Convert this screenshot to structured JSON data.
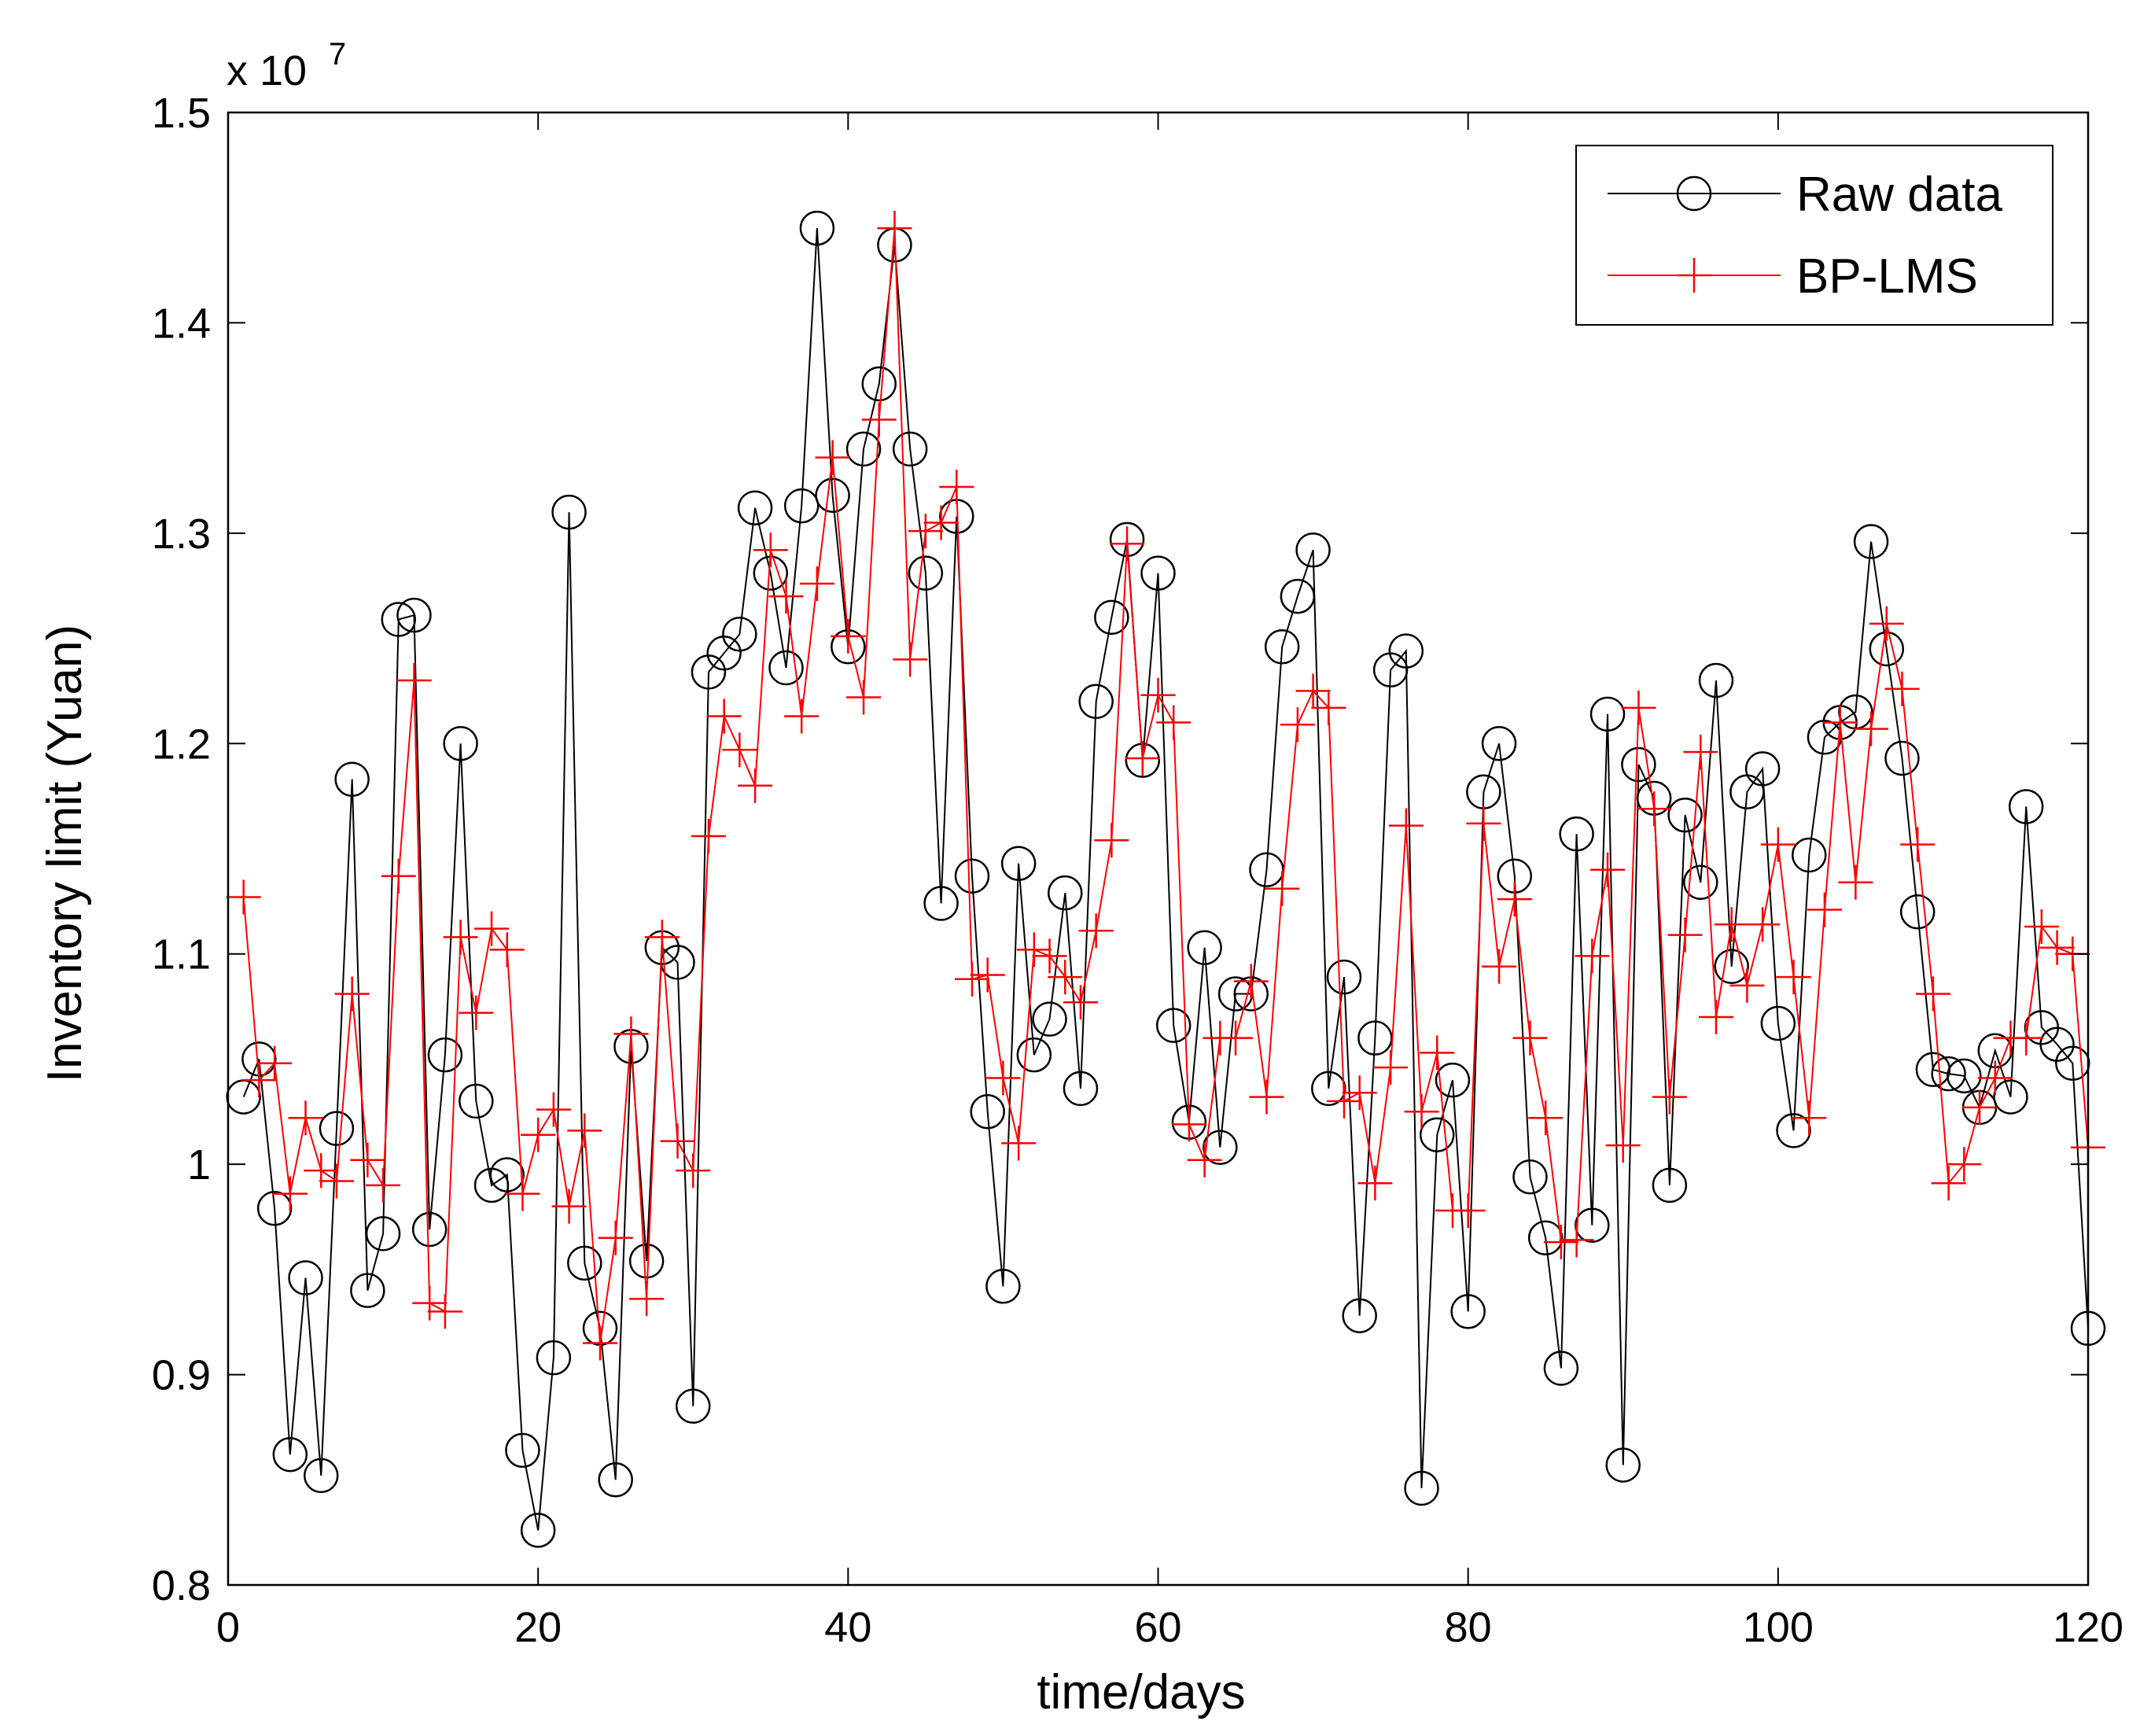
{
  "chart_data": {
    "type": "line",
    "title": "",
    "xlabel": "time/days",
    "ylabel": "Inventory limit (Yuan)",
    "y_exponent_label": {
      "base": "x 10",
      "exp": "7"
    },
    "xlim": [
      0,
      120
    ],
    "ylim": [
      0.8,
      1.5
    ],
    "xticks": [
      0,
      20,
      40,
      60,
      80,
      100,
      120
    ],
    "xtick_labels": [
      "0",
      "20",
      "40",
      "60",
      "80",
      "100",
      "120"
    ],
    "yticks": [
      0.8,
      0.9,
      1.0,
      1.1,
      1.2,
      1.3,
      1.4,
      1.5
    ],
    "ytick_labels": [
      "0.8",
      "0.9",
      "1",
      "1.1",
      "1.2",
      "1.3",
      "1.4",
      "1.5"
    ],
    "grid": false,
    "legend_position": "top-right",
    "colors": {
      "raw": "#000000",
      "bp": "#ff0000"
    },
    "x": [
      1,
      2,
      3,
      4,
      5,
      6,
      7,
      8,
      9,
      10,
      11,
      12,
      13,
      14,
      15,
      16,
      17,
      18,
      19,
      20,
      21,
      22,
      23,
      24,
      25,
      26,
      27,
      28,
      29,
      30,
      31,
      32,
      33,
      34,
      35,
      36,
      37,
      38,
      39,
      40,
      41,
      42,
      43,
      44,
      45,
      46,
      47,
      48,
      49,
      50,
      51,
      52,
      53,
      54,
      55,
      56,
      57,
      58,
      59,
      60,
      61,
      62,
      63,
      64,
      65,
      66,
      67,
      68,
      69,
      70,
      71,
      72,
      73,
      74,
      75,
      76,
      77,
      78,
      79,
      80,
      81,
      82,
      83,
      84,
      85,
      86,
      87,
      88,
      89,
      90,
      91,
      92,
      93,
      94,
      95,
      96,
      97,
      98,
      99,
      100,
      101,
      102,
      103,
      104,
      105,
      106,
      107,
      108,
      109,
      110,
      111,
      112,
      113,
      114,
      115,
      116,
      117,
      118,
      119,
      120
    ],
    "series": [
      {
        "name": "Raw data",
        "marker": "circle",
        "values": [
          1.032,
          1.05,
          0.979,
          0.862,
          0.946,
          0.852,
          1.017,
          1.183,
          0.94,
          0.967,
          1.259,
          1.261,
          0.969,
          1.052,
          1.2,
          1.03,
          0.99,
          0.995,
          0.864,
          0.826,
          0.908,
          1.31,
          0.953,
          0.922,
          0.85,
          1.056,
          0.954,
          1.103,
          1.096,
          0.885,
          1.234,
          1.243,
          1.252,
          1.312,
          1.281,
          1.236,
          1.313,
          1.445,
          1.318,
          1.246,
          1.34,
          1.371,
          1.437,
          1.34,
          1.281,
          1.124,
          1.308,
          1.137,
          1.025,
          0.942,
          1.143,
          1.052,
          1.069,
          1.129,
          1.036,
          1.22,
          1.26,
          1.297,
          1.192,
          1.281,
          1.066,
          1.02,
          1.103,
          1.008,
          1.081,
          1.081,
          1.14,
          1.246,
          1.27,
          1.292,
          1.036,
          1.089,
          0.928,
          1.06,
          1.235,
          1.244,
          0.846,
          1.014,
          1.04,
          0.93,
          1.177,
          1.2,
          1.137,
          0.994,
          0.965,
          0.903,
          1.157,
          0.971,
          1.214,
          0.857,
          1.19,
          1.174,
          0.99,
          1.166,
          1.134,
          1.23,
          1.094,
          1.177,
          1.188,
          1.067,
          1.016,
          1.147,
          1.203,
          1.21,
          1.215,
          1.296,
          1.245,
          1.193,
          1.12,
          1.045,
          1.043,
          1.042,
          1.027,
          1.054,
          1.032,
          1.17,
          1.065,
          1.057,
          1.048,
          0.922
        ]
      },
      {
        "name": "BP-LMS",
        "marker": "plus",
        "values": [
          1.127,
          1.04,
          1.048,
          0.986,
          1.022,
          0.997,
          0.992,
          1.081,
          1.002,
          0.99,
          1.137,
          1.23,
          0.934,
          0.93,
          1.108,
          1.072,
          1.112,
          1.102,
          0.986,
          1.014,
          1.026,
          0.98,
          1.016,
          0.915,
          0.965,
          1.062,
          0.936,
          1.108,
          1.011,
          0.997,
          1.156,
          1.213,
          1.197,
          1.18,
          1.292,
          1.27,
          1.213,
          1.276,
          1.336,
          1.251,
          1.222,
          1.354,
          1.445,
          1.24,
          1.301,
          1.305,
          1.322,
          1.088,
          1.09,
          1.041,
          1.01,
          1.102,
          1.099,
          1.089,
          1.077,
          1.111,
          1.154,
          1.295,
          1.193,
          1.223,
          1.21,
          1.019,
          1.002,
          1.06,
          1.06,
          1.087,
          1.032,
          1.131,
          1.209,
          1.225,
          1.217,
          1.03,
          1.034,
          0.991,
          1.046,
          1.161,
          1.025,
          1.053,
          0.978,
          0.978,
          1.162,
          1.094,
          1.126,
          1.06,
          1.022,
          0.963,
          0.964,
          1.099,
          1.14,
          1.009,
          1.217,
          1.169,
          1.032,
          1.109,
          1.196,
          1.07,
          1.114,
          1.085,
          1.114,
          1.152,
          1.089,
          1.022,
          1.121,
          1.21,
          1.134,
          1.207,
          1.257,
          1.226,
          1.152,
          1.081,
          0.991,
          1.0,
          1.027,
          1.041,
          1.06,
          1.06,
          1.113,
          1.103,
          1.1,
          1.008
        ]
      }
    ]
  }
}
